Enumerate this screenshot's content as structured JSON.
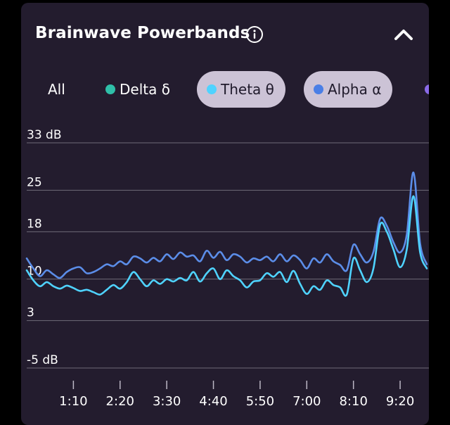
{
  "header": {
    "title": "Brainwave Powerbands",
    "info_icon": "info-circle-icon",
    "collapse_icon": "chevron-up-icon"
  },
  "filters": [
    {
      "label": "All",
      "active": false
    },
    {
      "label": "Delta δ",
      "active": false,
      "color": "#2fbfa8"
    },
    {
      "label": "Theta θ",
      "active": true,
      "color": "#4fd3ff"
    },
    {
      "label": "Alpha α",
      "active": true,
      "color": "#4a7fe6"
    },
    {
      "label": "",
      "active": false,
      "color": "#8a6ae8"
    }
  ],
  "colors": {
    "card": "#231c2e",
    "grid": "#6f6a78",
    "theta": "#4fd3ff",
    "alpha": "#5b8de8"
  },
  "chart_data": {
    "type": "line",
    "y_ticks": [
      {
        "value": 33,
        "label": "33 dB"
      },
      {
        "value": 25,
        "label": "25"
      },
      {
        "value": 18,
        "label": "18"
      },
      {
        "value": 10,
        "label": "10"
      },
      {
        "value": 3,
        "label": "3"
      },
      {
        "value": -5,
        "label": "-5 dB"
      }
    ],
    "ylim": [
      -5,
      33
    ],
    "x_ticks": [
      {
        "value": 70,
        "label": "1:10"
      },
      {
        "value": 140,
        "label": "2:20"
      },
      {
        "value": 210,
        "label": "3:30"
      },
      {
        "value": 280,
        "label": "4:40"
      },
      {
        "value": 350,
        "label": "5:50"
      },
      {
        "value": 420,
        "label": "7:00"
      },
      {
        "value": 490,
        "label": "8:10"
      },
      {
        "value": 560,
        "label": "9:20"
      }
    ],
    "xlim": [
      0,
      600
    ],
    "grid": true,
    "series": [
      {
        "name": "Alpha α",
        "color": "#5b8de8",
        "x": [
          0,
          10,
          20,
          30,
          40,
          50,
          60,
          70,
          80,
          90,
          100,
          110,
          120,
          130,
          140,
          150,
          160,
          170,
          180,
          190,
          200,
          210,
          220,
          230,
          240,
          250,
          260,
          270,
          280,
          290,
          300,
          310,
          320,
          330,
          340,
          350,
          360,
          370,
          380,
          390,
          400,
          410,
          420,
          430,
          440,
          450,
          460,
          470,
          480,
          490,
          500,
          510,
          520,
          530,
          540,
          550,
          560,
          570,
          580,
          590,
          600
        ],
        "y": [
          13.5,
          11.8,
          10.5,
          11.5,
          10.8,
          10.2,
          11.2,
          11.8,
          12.0,
          11.0,
          11.2,
          11.8,
          12.5,
          12.2,
          13.0,
          12.5,
          13.8,
          13.5,
          12.8,
          13.6,
          13.0,
          14.2,
          13.4,
          14.5,
          13.8,
          14.0,
          13.0,
          14.8,
          13.6,
          14.6,
          13.2,
          14.2,
          13.8,
          12.8,
          13.5,
          13.2,
          13.8,
          13.0,
          14.2,
          13.0,
          14.0,
          13.2,
          11.8,
          13.5,
          12.8,
          14.2,
          13.0,
          12.4,
          11.5,
          15.8,
          14.2,
          12.8,
          14.6,
          20.2,
          19.0,
          16.2,
          14.5,
          17.5,
          28.0,
          16.0,
          12.5
        ]
      },
      {
        "name": "Theta θ",
        "color": "#4fd3ff",
        "x": [
          0,
          10,
          20,
          30,
          40,
          50,
          60,
          70,
          80,
          90,
          100,
          110,
          120,
          130,
          140,
          150,
          160,
          170,
          180,
          190,
          200,
          210,
          220,
          230,
          240,
          250,
          260,
          270,
          280,
          290,
          300,
          310,
          320,
          330,
          340,
          350,
          360,
          370,
          380,
          390,
          400,
          410,
          420,
          430,
          440,
          450,
          460,
          470,
          480,
          490,
          500,
          510,
          520,
          530,
          540,
          550,
          560,
          570,
          580,
          590,
          600
        ],
        "y": [
          11.5,
          9.8,
          8.8,
          9.5,
          8.8,
          8.4,
          8.9,
          8.5,
          8.0,
          8.2,
          7.8,
          7.4,
          8.2,
          9.0,
          8.4,
          9.5,
          11.2,
          10.0,
          8.8,
          9.8,
          9.2,
          10.0,
          9.6,
          10.2,
          9.8,
          11.2,
          9.6,
          11.0,
          11.8,
          10.0,
          11.5,
          10.5,
          9.8,
          8.6,
          9.6,
          9.8,
          11.0,
          10.4,
          11.2,
          9.5,
          11.4,
          9.2,
          7.5,
          8.8,
          8.2,
          9.8,
          9.0,
          8.6,
          7.4,
          13.5,
          11.5,
          9.5,
          11.8,
          19.2,
          18.0,
          15.0,
          12.0,
          15.0,
          24.0,
          14.5,
          11.8
        ]
      }
    ]
  }
}
